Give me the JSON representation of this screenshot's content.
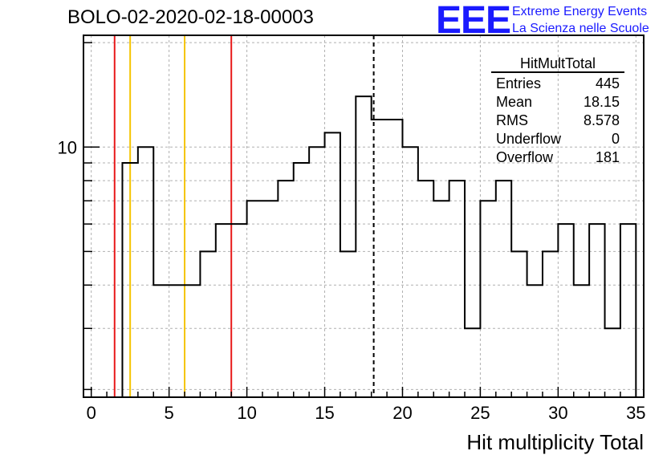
{
  "header": {
    "run_title": "BOLO-02-2020-02-18-00003",
    "logo_text": "EEE",
    "logo_line1": "Extreme Energy Events",
    "logo_line2": "La Scienza nelle Scuole",
    "logo_color": "#1a1aff"
  },
  "stats_box": {
    "title": "HitMultTotal",
    "rows": [
      {
        "label": "Entries",
        "value": "445"
      },
      {
        "label": "Mean",
        "value": "18.15"
      },
      {
        "label": "RMS",
        "value": "8.578"
      },
      {
        "label": "Underflow",
        "value": "0"
      },
      {
        "label": "Overflow",
        "value": "181"
      }
    ]
  },
  "chart_data": {
    "type": "histogram",
    "xlabel": "Hit multiplicity Total",
    "ylabel": "",
    "xlim": [
      -0.5,
      35.5
    ],
    "ylim": [
      1.9,
      21
    ],
    "yscale": "log",
    "grid": true,
    "bin_width": 1,
    "x_ticks": [
      0,
      5,
      10,
      15,
      20,
      25,
      30,
      35
    ],
    "y_tick_labels": [
      {
        "value": 10,
        "label": "10"
      }
    ],
    "bins": [
      {
        "x": 2.5,
        "y": 9
      },
      {
        "x": 3.5,
        "y": 10
      },
      {
        "x": 4.5,
        "y": 4
      },
      {
        "x": 5.5,
        "y": 4
      },
      {
        "x": 6.5,
        "y": 4
      },
      {
        "x": 7.5,
        "y": 5
      },
      {
        "x": 8.5,
        "y": 6
      },
      {
        "x": 9.5,
        "y": 6
      },
      {
        "x": 10.5,
        "y": 7
      },
      {
        "x": 11.5,
        "y": 7
      },
      {
        "x": 12.5,
        "y": 8
      },
      {
        "x": 13.5,
        "y": 9
      },
      {
        "x": 14.5,
        "y": 10
      },
      {
        "x": 15.5,
        "y": 11
      },
      {
        "x": 16.5,
        "y": 5
      },
      {
        "x": 17.5,
        "y": 14
      },
      {
        "x": 18.5,
        "y": 12
      },
      {
        "x": 19.5,
        "y": 12
      },
      {
        "x": 20.5,
        "y": 10
      },
      {
        "x": 21.5,
        "y": 8
      },
      {
        "x": 22.5,
        "y": 7
      },
      {
        "x": 23.5,
        "y": 8
      },
      {
        "x": 24.5,
        "y": 3
      },
      {
        "x": 25.5,
        "y": 7
      },
      {
        "x": 26.5,
        "y": 8
      },
      {
        "x": 27.5,
        "y": 5
      },
      {
        "x": 28.5,
        "y": 4
      },
      {
        "x": 29.5,
        "y": 5
      },
      {
        "x": 30.5,
        "y": 6
      },
      {
        "x": 31.5,
        "y": 4
      },
      {
        "x": 32.5,
        "y": 6
      },
      {
        "x": 33.5,
        "y": 3
      },
      {
        "x": 34.5,
        "y": 6
      }
    ],
    "vertical_lines": [
      {
        "x": 1.5,
        "color": "#e8191a",
        "style": "solid"
      },
      {
        "x": 2.5,
        "color": "#f5c400",
        "style": "solid"
      },
      {
        "x": 6.0,
        "color": "#f5c400",
        "style": "solid"
      },
      {
        "x": 9.0,
        "color": "#e8191a",
        "style": "solid"
      },
      {
        "x": 18.15,
        "color": "#000000",
        "style": "dashed"
      }
    ]
  }
}
